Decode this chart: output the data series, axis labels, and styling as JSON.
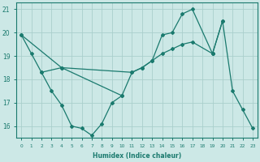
{
  "xlabel": "Humidex (Indice chaleur)",
  "color": "#1a7a6e",
  "bg_color": "#cce8e6",
  "grid_color": "#aacfcc",
  "ylim": [
    15.5,
    21.3
  ],
  "xlim": [
    -0.5,
    23.5
  ],
  "yticks": [
    16,
    17,
    18,
    19,
    20,
    21
  ],
  "xticks": [
    0,
    1,
    2,
    3,
    4,
    5,
    6,
    7,
    8,
    9,
    10,
    11,
    12,
    13,
    14,
    15,
    16,
    17,
    18,
    19,
    20,
    21,
    22,
    23
  ],
  "lines": [
    {
      "x": [
        0,
        1,
        2,
        3,
        4,
        5,
        6,
        7,
        8,
        9,
        10
      ],
      "y": [
        19.9,
        19.1,
        18.3,
        17.5,
        16.9,
        16.0,
        15.9,
        15.6,
        16.1,
        17.0,
        17.3
      ]
    },
    {
      "x": [
        0,
        4,
        11,
        12,
        13,
        14,
        15,
        16,
        17,
        19
      ],
      "y": [
        19.9,
        18.5,
        18.3,
        18.5,
        18.8,
        19.1,
        19.3,
        19.5,
        19.6,
        19.1
      ]
    },
    {
      "x": [
        2,
        4,
        10,
        11,
        12,
        13,
        14,
        15,
        16,
        17,
        19,
        20
      ],
      "y": [
        18.3,
        18.5,
        17.3,
        18.3,
        18.5,
        18.8,
        19.9,
        20.0,
        20.8,
        21.0,
        19.1,
        20.5
      ]
    },
    {
      "x": [
        19,
        20,
        21,
        22,
        23
      ],
      "y": [
        19.1,
        20.5,
        17.5,
        16.7,
        15.9
      ]
    }
  ]
}
